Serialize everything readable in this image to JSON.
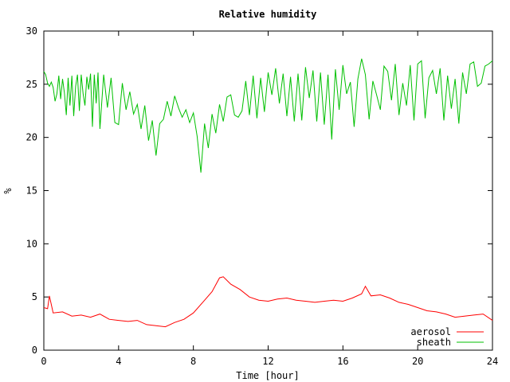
{
  "chart_data": {
    "type": "line",
    "title": "Relative humidity",
    "xlabel": "Time [hour]",
    "ylabel": "%",
    "xlim": [
      0,
      24
    ],
    "ylim": [
      0,
      30
    ],
    "x_ticks": [
      0,
      4,
      8,
      12,
      16,
      20,
      24
    ],
    "y_ticks": [
      0,
      5,
      10,
      15,
      20,
      25,
      30
    ],
    "grid": false,
    "legend_position": "bottom-right",
    "series": [
      {
        "name": "aerosol",
        "color": "#ff0000",
        "x": [
          0.0,
          0.2,
          0.3,
          0.5,
          1.0,
          1.5,
          2.0,
          2.5,
          3.0,
          3.5,
          4.0,
          4.5,
          5.0,
          5.5,
          6.0,
          6.5,
          7.0,
          7.5,
          8.0,
          8.5,
          9.0,
          9.4,
          9.6,
          10.0,
          10.5,
          11.0,
          11.5,
          12.0,
          12.5,
          13.0,
          13.5,
          14.0,
          14.5,
          15.0,
          15.5,
          16.0,
          16.5,
          17.0,
          17.2,
          17.5,
          18.0,
          18.5,
          19.0,
          19.5,
          20.0,
          20.5,
          21.0,
          21.5,
          22.0,
          22.5,
          23.0,
          23.5,
          24.0
        ],
        "values": [
          4.0,
          3.9,
          5.1,
          3.5,
          3.6,
          3.2,
          3.3,
          3.1,
          3.4,
          2.9,
          2.8,
          2.7,
          2.8,
          2.4,
          2.3,
          2.2,
          2.6,
          2.9,
          3.5,
          4.5,
          5.5,
          6.8,
          6.9,
          6.2,
          5.7,
          5.0,
          4.7,
          4.6,
          4.8,
          4.9,
          4.7,
          4.6,
          4.5,
          4.6,
          4.7,
          4.6,
          4.9,
          5.3,
          6.0,
          5.1,
          5.2,
          4.9,
          4.5,
          4.3,
          4.0,
          3.7,
          3.6,
          3.4,
          3.1,
          3.2,
          3.3,
          3.4,
          2.8
        ]
      },
      {
        "name": "sheath",
        "color": "#00c000",
        "x": [
          0.0,
          0.1,
          0.2,
          0.3,
          0.4,
          0.5,
          0.6,
          0.7,
          0.8,
          0.9,
          1.0,
          1.1,
          1.2,
          1.3,
          1.4,
          1.5,
          1.6,
          1.7,
          1.8,
          1.9,
          2.0,
          2.1,
          2.2,
          2.3,
          2.4,
          2.5,
          2.6,
          2.7,
          2.8,
          2.9,
          3.0,
          3.2,
          3.4,
          3.6,
          3.8,
          4.0,
          4.2,
          4.4,
          4.6,
          4.8,
          5.0,
          5.2,
          5.4,
          5.6,
          5.8,
          6.0,
          6.2,
          6.4,
          6.6,
          6.8,
          7.0,
          7.2,
          7.4,
          7.6,
          7.8,
          8.0,
          8.2,
          8.4,
          8.6,
          8.8,
          9.0,
          9.2,
          9.4,
          9.6,
          9.8,
          10.0,
          10.2,
          10.4,
          10.6,
          10.8,
          11.0,
          11.2,
          11.4,
          11.6,
          11.8,
          12.0,
          12.2,
          12.4,
          12.6,
          12.8,
          13.0,
          13.2,
          13.4,
          13.6,
          13.8,
          14.0,
          14.2,
          14.4,
          14.6,
          14.8,
          15.0,
          15.2,
          15.4,
          15.6,
          15.8,
          16.0,
          16.2,
          16.4,
          16.6,
          16.8,
          17.0,
          17.2,
          17.4,
          17.6,
          17.8,
          18.0,
          18.2,
          18.4,
          18.6,
          18.8,
          19.0,
          19.2,
          19.4,
          19.6,
          19.8,
          20.0,
          20.2,
          20.4,
          20.6,
          20.8,
          21.0,
          21.2,
          21.4,
          21.6,
          21.8,
          22.0,
          22.2,
          22.4,
          22.6,
          22.8,
          23.0,
          23.2,
          23.4,
          23.6,
          23.8,
          24.0
        ],
        "values": [
          26.2,
          25.9,
          25.1,
          24.8,
          25.2,
          24.7,
          23.4,
          24.1,
          25.8,
          23.6,
          25.5,
          24.2,
          22.1,
          25.6,
          23.0,
          25.8,
          22.0,
          24.8,
          25.9,
          22.5,
          25.9,
          24.1,
          23.0,
          25.7,
          24.5,
          26.0,
          21.0,
          25.9,
          23.2,
          26.1,
          20.8,
          25.9,
          22.8,
          25.6,
          21.4,
          21.2,
          25.1,
          22.6,
          24.3,
          22.2,
          23.1,
          20.8,
          23.0,
          19.7,
          21.6,
          18.3,
          21.3,
          21.7,
          23.4,
          22.0,
          23.9,
          22.8,
          21.9,
          22.6,
          21.4,
          22.3,
          20.1,
          16.7,
          21.3,
          19.0,
          22.2,
          20.4,
          23.1,
          21.5,
          23.8,
          24.0,
          22.1,
          21.9,
          22.5,
          25.3,
          22.1,
          25.8,
          21.8,
          25.6,
          22.4,
          26.1,
          24.0,
          26.5,
          23.2,
          26.0,
          22.0,
          25.7,
          21.5,
          26.0,
          21.6,
          26.6,
          23.7,
          26.3,
          21.5,
          26.1,
          21.2,
          25.9,
          19.8,
          26.4,
          22.6,
          26.8,
          24.1,
          25.2,
          21.0,
          25.5,
          27.4,
          25.9,
          21.7,
          25.3,
          24.0,
          22.6,
          26.7,
          26.2,
          23.5,
          26.9,
          22.1,
          25.1,
          23.0,
          26.8,
          21.6,
          26.9,
          27.2,
          21.8,
          25.6,
          26.3,
          24.1,
          26.5,
          21.6,
          25.8,
          22.7,
          25.5,
          21.3,
          26.1,
          24.1,
          26.9,
          27.1,
          24.8,
          25.1,
          26.7,
          26.9,
          27.2
        ]
      }
    ]
  }
}
